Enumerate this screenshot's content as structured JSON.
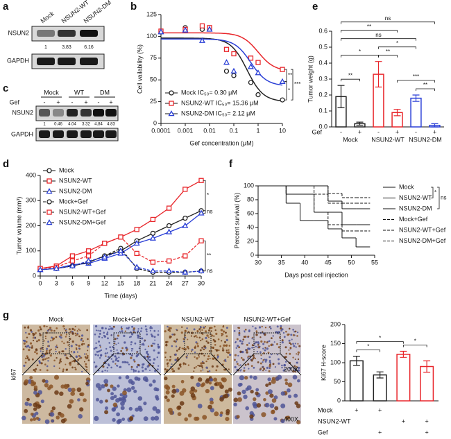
{
  "panel_labels": [
    "a",
    "b",
    "c",
    "d",
    "e",
    "f",
    "g"
  ],
  "blot_a": {
    "lanes": [
      "Mock",
      "NSUN2-WT",
      "NSUN2-DM"
    ],
    "rows": [
      "NSUN2",
      "GAPDH"
    ],
    "quant": [
      1,
      3.83,
      6.16
    ]
  },
  "blot_c": {
    "treatment_label": "Gef",
    "groups": [
      "Mock",
      "WT",
      "DM"
    ],
    "treatments": [
      "-",
      "+",
      "-",
      "+",
      "-",
      "+"
    ],
    "rows": [
      "NSUN2",
      "GAPDH"
    ],
    "quant": [
      1,
      0.46,
      4.04,
      3.32,
      4.84,
      4.83
    ]
  },
  "histology": {
    "columns": [
      "Mock",
      "Mock+Gef",
      "NSUN2-WT",
      "NSUN2-WT+Gef"
    ],
    "row_label": "ki67",
    "magnifications": [
      "200X",
      "400X"
    ]
  },
  "chart_data": [
    {
      "type": "line",
      "x_label": "Gef concentration (μM)",
      "y_label": "Cell vailability (%)",
      "x_log": true,
      "connect": false,
      "xlim": [
        0.0001,
        10
      ],
      "xticks": [
        0.0001,
        0.001,
        0.01,
        0.1,
        1,
        10
      ],
      "ylim": [
        0,
        125
      ],
      "yticks": [
        0,
        25,
        50,
        75,
        100,
        125
      ],
      "x": [
        0.0001,
        0.001,
        0.005,
        0.01,
        0.05,
        0.1,
        0.5,
        1,
        10
      ],
      "legend": "lower left",
      "series": [
        {
          "name": "Mock IC₅₀= 0.30 μM",
          "color": "#222222",
          "marker": "circle",
          "values": [
            105,
            110,
            108,
            110,
            60,
            55,
            47,
            33,
            27
          ],
          "fit": {
            "top": 98,
            "bottom": 25,
            "midpoint": 0.35,
            "hill": 1.3
          }
        },
        {
          "name": "NSUN2-WT IC₅₀= 15.36 μM",
          "color": "#e8252a",
          "marker": "square",
          "values": [
            106,
            108,
            112,
            110,
            85,
            80,
            75,
            70,
            62
          ],
          "fit": {
            "top": 104,
            "bottom": 60,
            "midpoint": 1.0,
            "hill": 1.3
          }
        },
        {
          "name": "NSUN2-DM IC₅₀= 2.12 μM",
          "color": "#2a3fd6",
          "marker": "triangle",
          "values": [
            105,
            107,
            95,
            108,
            70,
            60,
            65,
            58,
            48
          ],
          "fit": {
            "top": 97,
            "bottom": 43,
            "midpoint": 0.5,
            "hill": 1.3
          }
        }
      ],
      "comparisons": [
        {
          "text": "**",
          "between": [
            1,
            2
          ]
        },
        {
          "text": "*",
          "between": [
            2,
            0
          ]
        },
        {
          "text": "***",
          "between": [
            1,
            0
          ]
        }
      ]
    },
    {
      "type": "line",
      "x_label": "Time (days)",
      "y_label": "Tumor volume (mm³)",
      "xlim": [
        0,
        30
      ],
      "xticks": [
        0,
        3,
        6,
        9,
        12,
        15,
        18,
        21,
        24,
        27,
        30
      ],
      "ylim": [
        0,
        400
      ],
      "yticks": [
        0,
        100,
        200,
        300,
        400
      ],
      "x": [
        0,
        3,
        6,
        9,
        12,
        15,
        18,
        21,
        24,
        27,
        30
      ],
      "legend": "upper left",
      "series": [
        {
          "name": "Mock",
          "color": "#222222",
          "marker": "circle",
          "dash": false,
          "values": [
            25,
            30,
            40,
            55,
            80,
            100,
            140,
            170,
            200,
            230,
            260
          ]
        },
        {
          "name": "NSUN2-WT",
          "color": "#e8252a",
          "marker": "square",
          "dash": false,
          "values": [
            30,
            40,
            80,
            100,
            130,
            155,
            185,
            225,
            270,
            345,
            380
          ]
        },
        {
          "name": "NSUN2-DM",
          "color": "#2a3fd6",
          "marker": "triangle",
          "dash": false,
          "values": [
            25,
            30,
            45,
            50,
            70,
            90,
            130,
            150,
            175,
            200,
            250
          ]
        },
        {
          "name": "Mock+Gef",
          "color": "#222222",
          "marker": "circle",
          "dash": true,
          "values": [
            25,
            30,
            40,
            55,
            80,
            110,
            30,
            15,
            15,
            15,
            20
          ]
        },
        {
          "name": "NSUN2-WT+Gef",
          "color": "#e8252a",
          "marker": "square",
          "dash": true,
          "values": [
            30,
            35,
            60,
            80,
            130,
            155,
            90,
            55,
            60,
            80,
            140
          ]
        },
        {
          "name": "NSUN2-DM+Gef",
          "color": "#2a3fd6",
          "marker": "triangle",
          "dash": true,
          "values": [
            25,
            30,
            40,
            60,
            75,
            100,
            35,
            20,
            20,
            15,
            20
          ]
        }
      ],
      "comparisons": [
        {
          "text": "*",
          "between": [
            0,
            1
          ]
        },
        {
          "text": "ns",
          "between": [
            0,
            2
          ]
        },
        {
          "text": "**",
          "between": [
            3,
            4
          ]
        },
        {
          "text": "ns",
          "between": [
            3,
            5
          ]
        }
      ]
    },
    {
      "type": "bar",
      "y_label": "Tumor weight (g)",
      "row_label": "Gef",
      "categories": [
        "-",
        "+",
        "-",
        "+",
        "-",
        "+"
      ],
      "groups": [
        "Mock",
        "NSUN2-WT",
        "NSUN2-DM"
      ],
      "values": [
        0.19,
        0.02,
        0.33,
        0.09,
        0.18,
        0.01
      ],
      "errors": [
        0.07,
        0.01,
        0.08,
        0.02,
        0.02,
        0.01
      ],
      "colors": [
        "#222222",
        "#222222",
        "#e8252a",
        "#e8252a",
        "#2a3fd6",
        "#2a3fd6"
      ],
      "ylim": [
        0,
        0.6
      ],
      "yticks": [
        {
          "value": 0,
          "label": "0.0"
        },
        0.1,
        0.2,
        0.3,
        0.4,
        0.5,
        0.6
      ],
      "comparisons": [
        {
          "text": "**",
          "between": [
            0,
            1
          ]
        },
        {
          "text": "**",
          "between": [
            4,
            5
          ]
        },
        {
          "text": "***",
          "between": [
            3,
            5
          ]
        },
        {
          "text": "**",
          "between": [
            2,
            3
          ]
        },
        {
          "text": "*",
          "between": [
            0,
            2
          ]
        },
        {
          "text": "*",
          "between": [
            2,
            4
          ]
        },
        {
          "text": "ns",
          "between": [
            0,
            4
          ]
        },
        {
          "text": "**",
          "between": [
            0,
            3
          ]
        },
        {
          "text": "ns",
          "between": [
            0,
            5
          ]
        }
      ]
    },
    {
      "type": "line",
      "step": true,
      "x_label": "Days post cell injection",
      "y_label": "Percent survival (%)",
      "xlim": [
        30,
        55
      ],
      "xticks": [
        30,
        35,
        40,
        45,
        50,
        55
      ],
      "ylim": [
        0,
        100
      ],
      "yticks": [
        0,
        20,
        40,
        60,
        80,
        100
      ],
      "x": [
        30,
        36,
        39,
        42,
        45,
        48,
        51,
        54
      ],
      "legend": "right",
      "series": [
        {
          "name": "Mock",
          "color": "#222222",
          "dash": false,
          "values": [
            100,
            100,
            100,
            100,
            78,
            67,
            67,
            67
          ]
        },
        {
          "name": "NSUN2-WT",
          "color": "#e8252a",
          "dash": false,
          "values": [
            100,
            75,
            50,
            50,
            38,
            25,
            12,
            12
          ]
        },
        {
          "name": "NSUN2-DM",
          "color": "#2a3fd6",
          "dash": false,
          "values": [
            100,
            88,
            88,
            62,
            62,
            44,
            44,
            44
          ]
        },
        {
          "name": "Mock+Gef",
          "color": "#222222",
          "dash": true,
          "values": [
            100,
            100,
            100,
            100,
            89,
            83,
            83,
            83
          ]
        },
        {
          "name": "NSUN2-WT+Gef",
          "color": "#e8252a",
          "dash": true,
          "values": [
            100,
            88,
            88,
            62,
            44,
            35,
            35,
            35
          ]
        },
        {
          "name": "NSUN2-DM+Gef",
          "color": "#2a3fd6",
          "dash": true,
          "values": [
            100,
            100,
            100,
            88,
            75,
            75,
            75,
            75
          ]
        }
      ],
      "comparisons": [
        {
          "text": "*",
          "between": [
            0,
            1
          ]
        },
        {
          "text": "ns",
          "between": [
            0,
            2
          ]
        }
      ]
    },
    {
      "type": "bar",
      "y_label": "Ki67 H-score",
      "categories": [
        null,
        null,
        null,
        null
      ],
      "values": [
        105,
        68,
        122,
        90
      ],
      "errors": [
        12,
        8,
        8,
        15
      ],
      "colors": [
        "#222222",
        "#222222",
        "#e8252a",
        "#e8252a"
      ],
      "ylim": [
        0,
        200
      ],
      "yticks": [
        0,
        50,
        100,
        150,
        200
      ],
      "conditions": [
        {
          "label": "Mock",
          "marks": [
            "+",
            "+",
            null,
            null
          ]
        },
        {
          "label": "NSUN2-WT",
          "marks": [
            null,
            null,
            "+",
            "+"
          ]
        },
        {
          "label": "Gef",
          "marks": [
            null,
            "+",
            null,
            "+"
          ]
        }
      ],
      "comparisons": [
        {
          "text": "*",
          "between": [
            0,
            1
          ]
        },
        {
          "text": "*",
          "between": [
            2,
            3
          ]
        },
        {
          "text": "*",
          "between": [
            0,
            2
          ]
        }
      ]
    }
  ]
}
